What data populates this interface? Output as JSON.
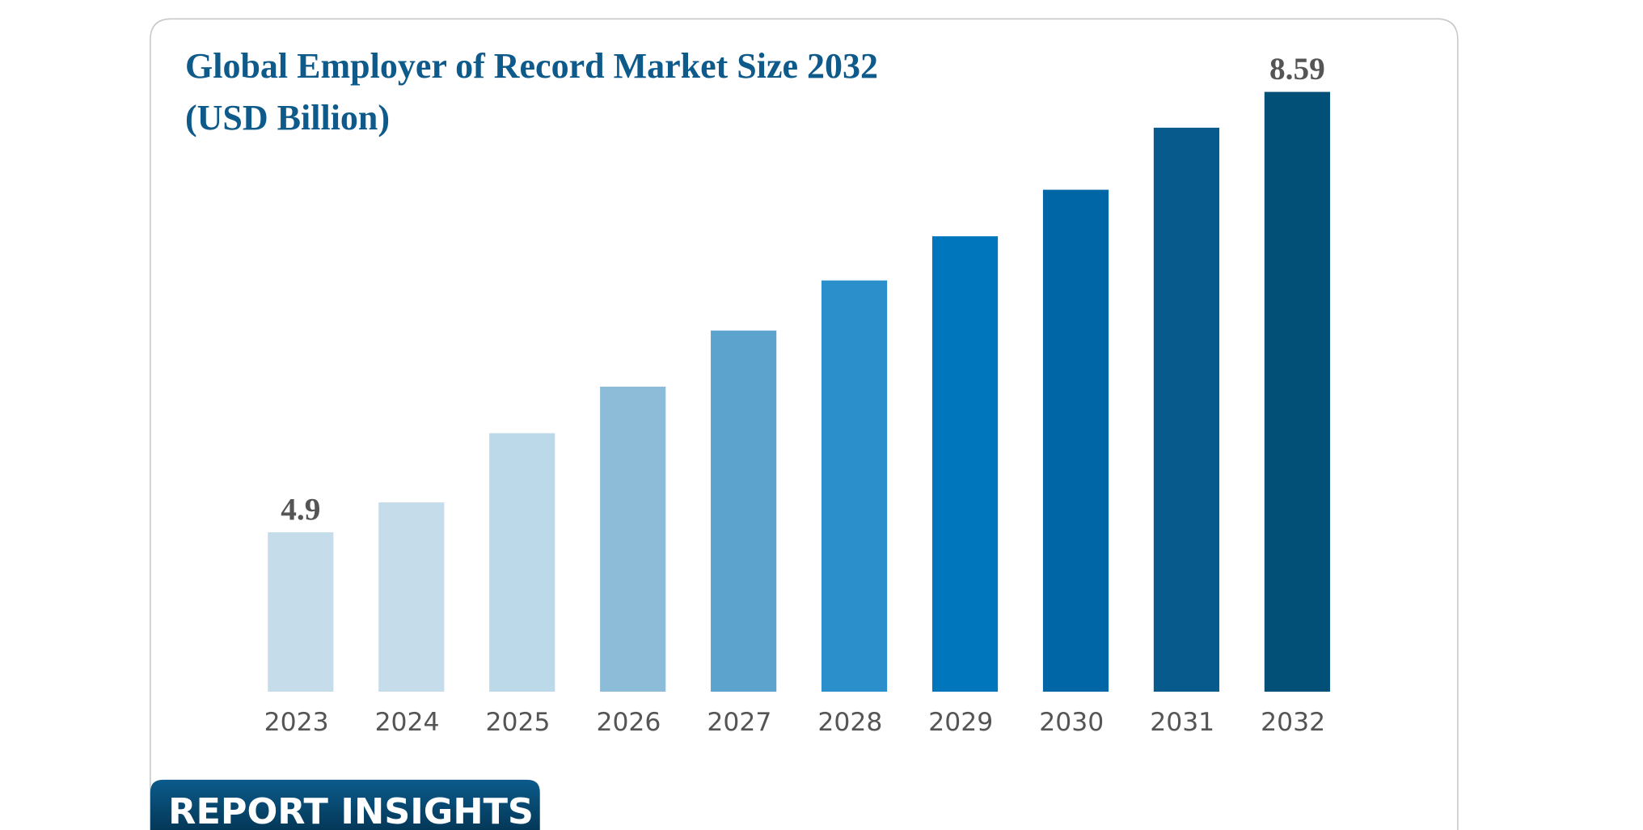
{
  "chart_data": {
    "type": "bar",
    "title": "Global Employer of Record Market Size 2032 (USD Billion)",
    "categories": [
      "2023",
      "2024",
      "2025",
      "2026",
      "2027",
      "2028",
      "2029",
      "2030",
      "2031",
      "2032"
    ],
    "values": [
      4.9,
      5.15,
      5.73,
      6.12,
      6.59,
      7.01,
      7.38,
      7.77,
      8.29,
      8.59
    ],
    "value_labels": [
      "4.9",
      null,
      null,
      null,
      null,
      null,
      null,
      null,
      null,
      "8.59"
    ],
    "colors": [
      "#c5dcea",
      "#c5dcea",
      "#bcd9ea",
      "#8dbcd9",
      "#5ca3cd",
      "#2a8fca",
      "#0077bd",
      "#0066a6",
      "#075a8c",
      "#025078"
    ],
    "ylim": [
      3.564,
      9.0
    ]
  },
  "banner": "REPORT INSIGHTS"
}
